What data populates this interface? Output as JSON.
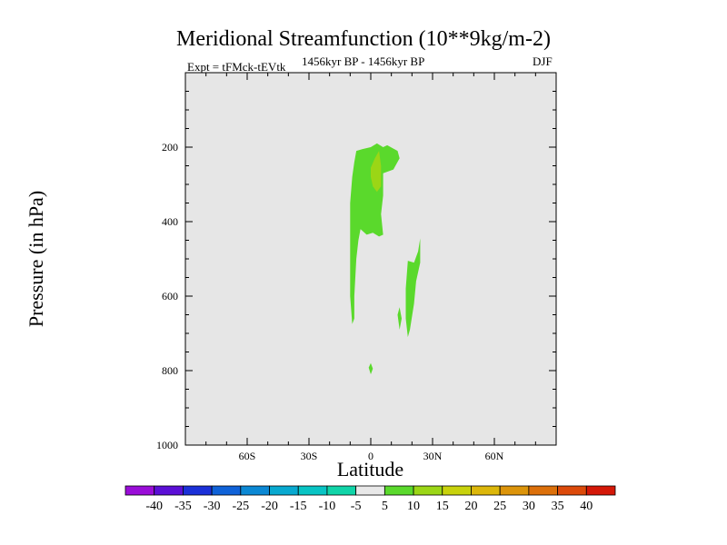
{
  "chart_data": {
    "type": "contour",
    "title": "Meridional Streamfunction (10**9kg/m-2)",
    "subtitle_left": "Expt = tFMck-tEVtk",
    "subtitle_center": "1456kyr BP - 1456kyr BP",
    "subtitle_right": "DJF",
    "xlabel": "Latitude",
    "ylabel": "Pressure (in hPa)",
    "x_range": [
      -90,
      90
    ],
    "y_range": [
      0,
      1000
    ],
    "y_inverted": true,
    "x_ticks": [
      {
        "value": -60,
        "label": "60S"
      },
      {
        "value": -30,
        "label": "30S"
      },
      {
        "value": 0,
        "label": "0"
      },
      {
        "value": 30,
        "label": "30N"
      },
      {
        "value": 60,
        "label": "60N"
      }
    ],
    "y_ticks": [
      {
        "value": 200,
        "label": "200"
      },
      {
        "value": 400,
        "label": "400"
      },
      {
        "value": 600,
        "label": "600"
      },
      {
        "value": 800,
        "label": "800"
      },
      {
        "value": 1000,
        "label": "1000"
      }
    ],
    "background_color": "#e6e6e6",
    "contour_regions": [
      {
        "name": "positive-cell-main",
        "level": "5-10",
        "color": "#5ad92c",
        "points": [
          [
            -8,
            240
          ],
          [
            -7,
            210
          ],
          [
            -4,
            205
          ],
          [
            0,
            200
          ],
          [
            3,
            190
          ],
          [
            6,
            200
          ],
          [
            8,
            195
          ],
          [
            13,
            210
          ],
          [
            14,
            230
          ],
          [
            11,
            260
          ],
          [
            6,
            270
          ],
          [
            6,
            330
          ],
          [
            5,
            380
          ],
          [
            6,
            435
          ],
          [
            4,
            440
          ],
          [
            1,
            430
          ],
          [
            -2,
            435
          ],
          [
            -5,
            420
          ],
          [
            -6,
            450
          ],
          [
            -7,
            500
          ],
          [
            -8,
            600
          ],
          [
            -8,
            660
          ],
          [
            -9,
            675
          ],
          [
            -10,
            600
          ],
          [
            -10,
            450
          ],
          [
            -10,
            350
          ],
          [
            -9,
            280
          ]
        ]
      },
      {
        "name": "positive-cell-core",
        "level": "10-15",
        "color": "#9bd616",
        "points": [
          [
            0,
            255
          ],
          [
            2,
            230
          ],
          [
            4,
            210
          ],
          [
            5,
            250
          ],
          [
            5,
            305
          ],
          [
            3,
            320
          ],
          [
            1,
            305
          ],
          [
            0,
            280
          ]
        ]
      },
      {
        "name": "positive-cell-south",
        "level": "5-10",
        "color": "#5ad92c",
        "points": [
          [
            24,
            445
          ],
          [
            24,
            510
          ],
          [
            22,
            560
          ],
          [
            21,
            620
          ],
          [
            19,
            690
          ],
          [
            18,
            710
          ],
          [
            17,
            660
          ],
          [
            17,
            580
          ],
          [
            18,
            505
          ],
          [
            21,
            510
          ],
          [
            23,
            480
          ]
        ]
      },
      {
        "name": "positive-cell-small-a",
        "level": "5-10",
        "color": "#5ad92c",
        "points": [
          [
            14,
            630
          ],
          [
            15,
            660
          ],
          [
            14,
            690
          ],
          [
            13,
            650
          ]
        ]
      },
      {
        "name": "positive-cell-small-b",
        "level": "5-10",
        "color": "#5ad92c",
        "points": [
          [
            0,
            780
          ],
          [
            1,
            795
          ],
          [
            0,
            810
          ],
          [
            -1,
            792
          ]
        ]
      }
    ],
    "colorbar": {
      "levels": [
        "-40",
        "-35",
        "-30",
        "-25",
        "-20",
        "-15",
        "-10",
        "-5",
        "5",
        "10",
        "15",
        "20",
        "25",
        "30",
        "35",
        "40"
      ],
      "colors": [
        "#9a0dd8",
        "#5b0fd6",
        "#1b30d8",
        "#0f62d8",
        "#0b88d4",
        "#08a9d0",
        "#08c4c4",
        "#10d4a8",
        "#e8e8e8",
        "#5ad92c",
        "#9bd616",
        "#c8d20c",
        "#dcb70a",
        "#dc940a",
        "#dc700a",
        "#dc4a0a",
        "#d41808"
      ]
    }
  }
}
